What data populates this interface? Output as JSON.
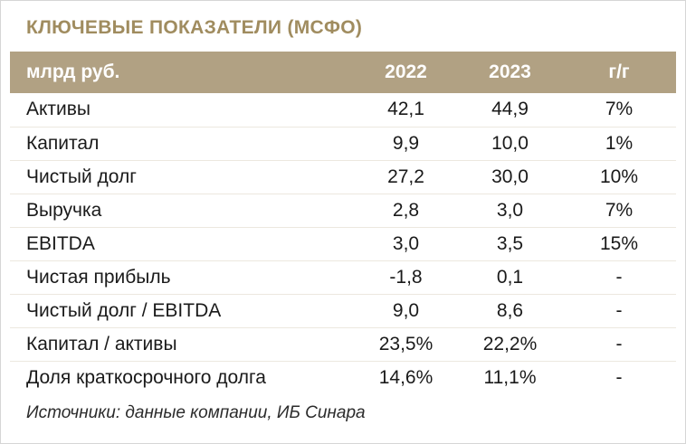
{
  "title": "КЛЮЧЕВЫЕ ПОКАЗАТЕЛИ (МСФО)",
  "colors": {
    "accent": "#a08c5f",
    "header_bg": "#b1a183",
    "header_text": "#ffffff"
  },
  "chart_data": {
    "type": "table",
    "title": "КЛЮЧЕВЫЕ ПОКАЗАТЕЛИ (МСФО)",
    "columns": [
      "млрд руб.",
      "2022",
      "2023",
      "г/г"
    ],
    "rows": [
      [
        "Активы",
        "42,1",
        "44,9",
        "7%"
      ],
      [
        "Капитал",
        "9,9",
        "10,0",
        "1%"
      ],
      [
        "Чистый долг",
        "27,2",
        "30,0",
        "10%"
      ],
      [
        "Выручка",
        "2,8",
        "3,0",
        "7%"
      ],
      [
        "EBITDA",
        "3,0",
        "3,5",
        "15%"
      ],
      [
        "Чистая прибыль",
        "-1,8",
        "0,1",
        "-"
      ],
      [
        "Чистый долг / EBITDA",
        "9,0",
        "8,6",
        "-"
      ],
      [
        "Капитал / активы",
        "23,5%",
        "22,2%",
        "-"
      ],
      [
        "Доля краткосрочного долга",
        "14,6%",
        "11,1%",
        "-"
      ]
    ]
  },
  "footer": {
    "source": "Источники: данные компании, ИБ Синара"
  }
}
